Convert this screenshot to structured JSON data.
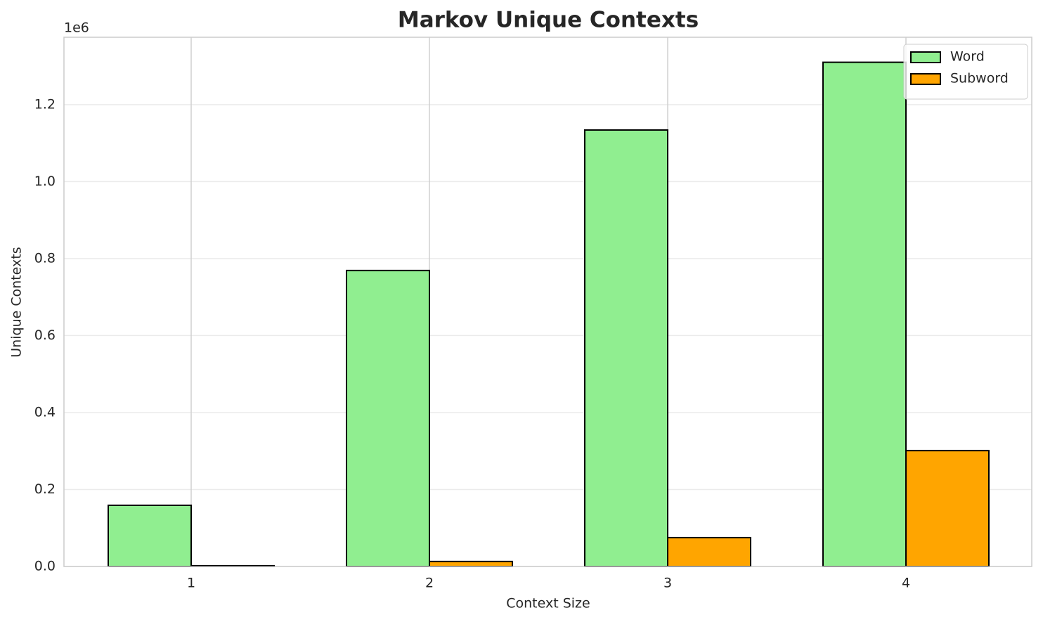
{
  "chart_data": {
    "type": "bar",
    "title": "Markov Unique Contexts",
    "x_label": "Context Size",
    "y_label": "Unique Contexts",
    "y_offset_label": "1e6",
    "categories": [
      "1",
      "2",
      "3",
      "4"
    ],
    "series": [
      {
        "name": "Word",
        "color": "#90ee90",
        "values": [
          0.159,
          0.769,
          1.134,
          1.31
        ]
      },
      {
        "name": "Subword",
        "color": "#ffa500",
        "values": [
          0.002,
          0.013,
          0.075,
          0.301
        ]
      }
    ],
    "ylim": [
      0,
      1.375
    ],
    "yticks": [
      {
        "value": 0,
        "label": "0.0"
      },
      0.2,
      0.4,
      0.6,
      0.8,
      {
        "value": 1,
        "label": "1.0"
      },
      1.2
    ],
    "grid": true,
    "legend": "upper right"
  }
}
